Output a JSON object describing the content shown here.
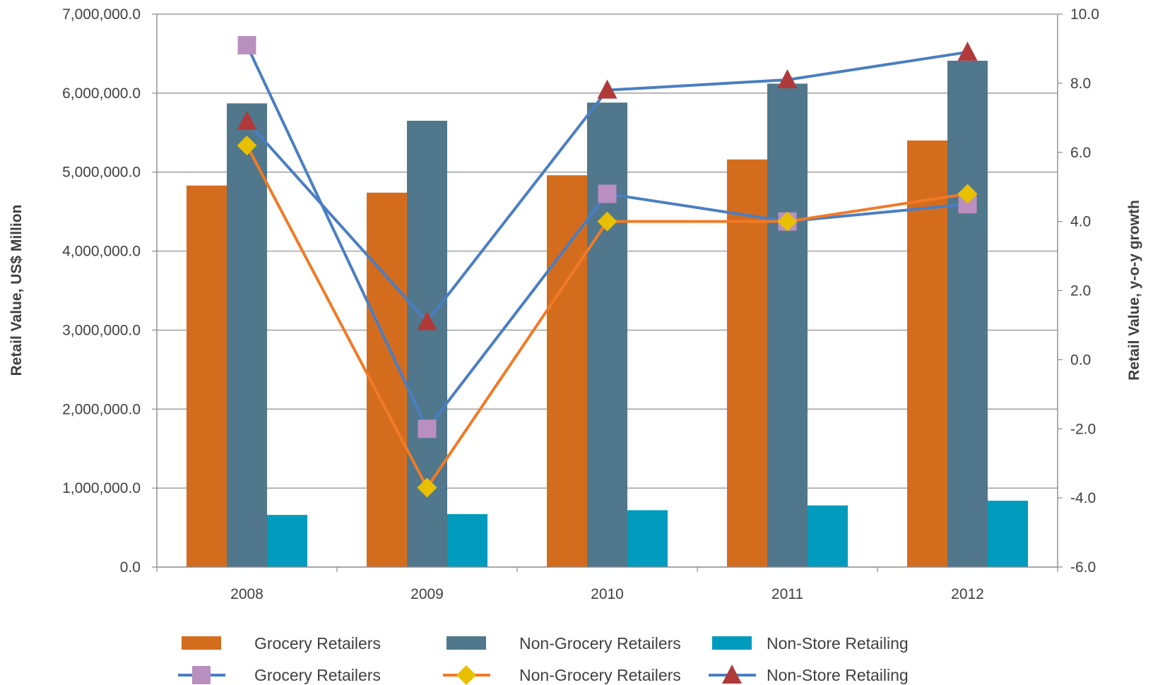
{
  "chart_data": {
    "type": "bar",
    "categories": [
      "2008",
      "2009",
      "2010",
      "2011",
      "2012"
    ],
    "xlabel": "",
    "ylabel": "Retail Value, US$ Million",
    "y2label": "Retail Value, y-o-y growth",
    "ylim": [
      0,
      7000000
    ],
    "y2lim": [
      -6,
      10
    ],
    "yticks": [
      "0.0",
      "1,000,000.0",
      "2,000,000.0",
      "3,000,000.0",
      "4,000,000.0",
      "5,000,000.0",
      "6,000,000.0",
      "7,000,000.0"
    ],
    "y2ticks": [
      "-6.0",
      "-4.0",
      "-2.0",
      "0.0",
      "2.0",
      "4.0",
      "6.0",
      "8.0",
      "10.0"
    ],
    "grid": true,
    "legend_position": "bottom",
    "bar_series": [
      {
        "name": "Grocery Retailers",
        "color": "#d46c1e",
        "values": [
          4830000,
          4740000,
          4960000,
          5160000,
          5400000
        ]
      },
      {
        "name": "Non-Grocery Retailers",
        "color": "#50778b",
        "values": [
          5870000,
          5650000,
          5880000,
          6120000,
          6410000
        ]
      },
      {
        "name": "Non-Store Retailing",
        "color": "#009bbd",
        "values": [
          660000,
          670000,
          720000,
          780000,
          840000
        ]
      }
    ],
    "line_series": [
      {
        "name": "Grocery Retailers",
        "line_color": "#4a7ec1",
        "marker": "square",
        "marker_color": "#b98fbf",
        "values": [
          9.1,
          -2.0,
          4.8,
          4.0,
          4.5
        ]
      },
      {
        "name": "Non-Grocery Retailers",
        "line_color": "#f07a26",
        "marker": "diamond",
        "marker_color": "#e8c000",
        "values": [
          6.2,
          -3.7,
          4.0,
          4.0,
          4.8
        ]
      },
      {
        "name": "Non-Store Retailing",
        "line_color": "#4a7ec1",
        "marker": "triangle",
        "marker_color": "#b03a3a",
        "values": [
          6.9,
          1.1,
          7.8,
          8.1,
          8.9
        ]
      }
    ]
  }
}
